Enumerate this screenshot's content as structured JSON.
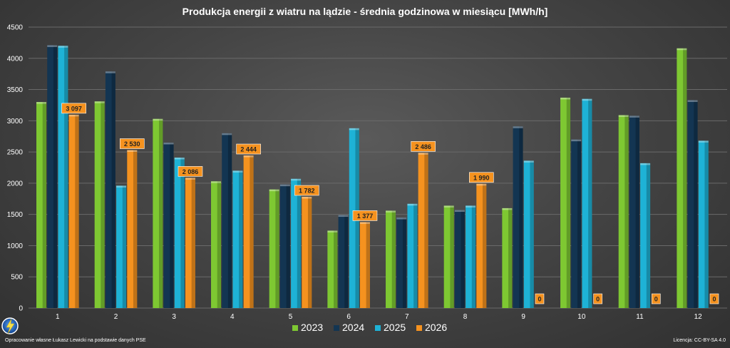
{
  "chart_data": {
    "type": "bar",
    "title": "Produkcja energii z wiatru na lądzie - średnia godzinowa w miesiącu [MWh/h]",
    "categories": [
      "1",
      "2",
      "3",
      "4",
      "5",
      "6",
      "7",
      "8",
      "9",
      "10",
      "11",
      "12"
    ],
    "ylim": [
      0,
      4500
    ],
    "yticks": [
      0,
      500,
      1000,
      1500,
      2000,
      2500,
      3000,
      3500,
      4000,
      4500
    ],
    "grid": true,
    "legend_position": "bottom",
    "series": [
      {
        "name": "2023",
        "color": "#7ec832",
        "values": [
          3300,
          3310,
          3030,
          2030,
          1900,
          1240,
          1560,
          1640,
          1600,
          3370,
          3090,
          4160
        ]
      },
      {
        "name": "2024",
        "color": "#133552",
        "values": [
          4210,
          3790,
          2650,
          2800,
          1980,
          1490,
          1450,
          1570,
          2910,
          2700,
          3080,
          3330
        ]
      },
      {
        "name": "2025",
        "color": "#1eb2d6",
        "values": [
          4200,
          1960,
          2410,
          2200,
          2070,
          2880,
          1670,
          1640,
          2360,
          3350,
          2320,
          2680
        ]
      },
      {
        "name": "2026",
        "color": "#f5921f",
        "values": [
          3097,
          2530,
          2086,
          2444,
          1782,
          1377,
          2486,
          1990,
          0,
          0,
          0,
          0
        ],
        "labels": [
          "3 097",
          "2 530",
          "2 086",
          "2 444",
          "1 782",
          "1 377",
          "2 486",
          "1 990",
          "0",
          "0",
          "0",
          "0"
        ]
      }
    ]
  },
  "footer": {
    "source": "Opracowanie własne Łukasz Lewicki na podstawie danych PSE",
    "license": "Licencja: CC-BY-SA 4.0"
  },
  "logo": {
    "icon": "lightning-bolt-icon"
  }
}
